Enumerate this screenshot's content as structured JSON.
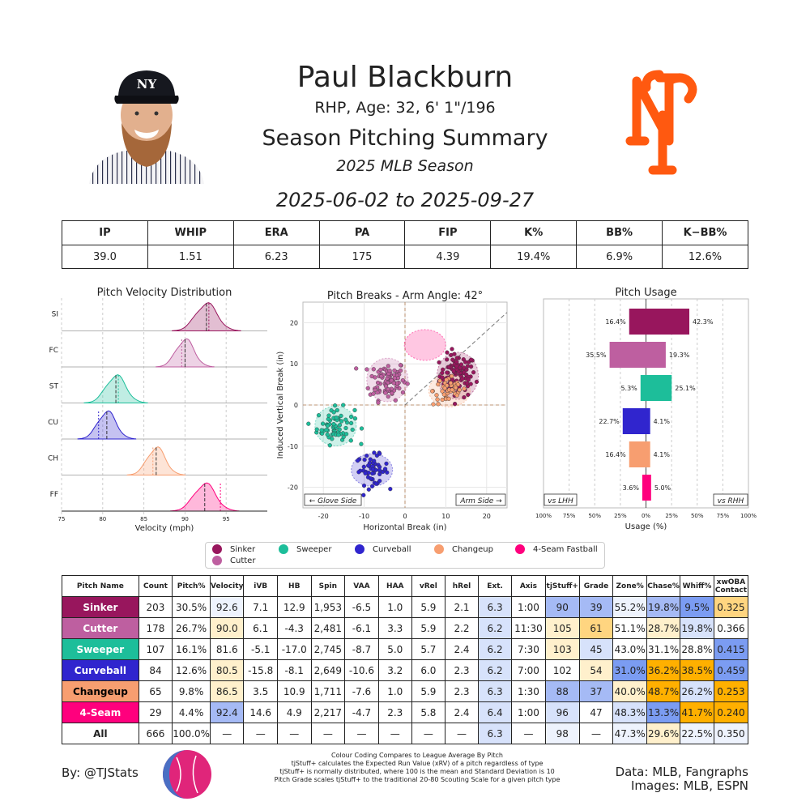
{
  "header": {
    "name": "Paul Blackburn",
    "info": "RHP, Age: 32, 6' 1\"/196",
    "summary_title": "Season Pitching Summary",
    "season": "2025 MLB Season",
    "date_range": "2025-06-02 to 2025-09-27"
  },
  "summary_stats": {
    "headers": [
      "IP",
      "WHIP",
      "ERA",
      "PA",
      "FIP",
      "K%",
      "BB%",
      "K−BB%"
    ],
    "values": [
      "39.0",
      "1.51",
      "6.23",
      "175",
      "4.39",
      "19.4%",
      "6.9%",
      "12.6%"
    ]
  },
  "colors": {
    "Sinker": "#98165d",
    "Cutter": "#be5fa0",
    "Sweeper": "#1dbe9a",
    "Curveball": "#3025ce",
    "Changeup": "#f79e70",
    "4-Seam Fastball": "#ff007d",
    "blue_strong": "#7b9cf2",
    "blue_mid": "#a5baf5",
    "blue_light": "#d7e2fb",
    "blue_faint": "#eef3fd",
    "orange_strong": "#ffb000",
    "orange_mid": "#ffd580",
    "orange_light": "#fff0cc"
  },
  "chart_data": [
    {
      "type": "area",
      "title": "Pitch Velocity Distribution",
      "xlabel": "Velocity (mph)",
      "xlim": [
        75,
        100
      ],
      "xticks": [
        "75",
        "80",
        "85",
        "90",
        "95"
      ],
      "series": [
        {
          "name": "SI",
          "pitch": "Sinker",
          "mean": 92.6,
          "league": 92.9,
          "sd": 1.3
        },
        {
          "name": "FC",
          "pitch": "Cutter",
          "mean": 90.0,
          "league": 89.6,
          "sd": 1.1
        },
        {
          "name": "ST",
          "pitch": "Sweeper",
          "mean": 81.6,
          "league": 81.9,
          "sd": 1.2
        },
        {
          "name": "CU",
          "pitch": "Curveball",
          "mean": 80.5,
          "league": 79.5,
          "sd": 1.1
        },
        {
          "name": "CH",
          "pitch": "Changeup",
          "mean": 86.5,
          "league": 86.1,
          "sd": 1.1
        },
        {
          "name": "FF",
          "pitch": "4-Seam Fastball",
          "mean": 92.4,
          "league": 94.3,
          "sd": 1.3
        }
      ]
    },
    {
      "type": "scatter",
      "title": "Pitch Breaks - Arm Angle: 42°",
      "xlabel": "Horizontal Break (in)",
      "ylabel": "Induced Vertical Break (in)",
      "xlim": [
        -25,
        25
      ],
      "ylim": [
        -25,
        25
      ],
      "xticks": [
        -20,
        -10,
        0,
        10,
        20
      ],
      "yticks": [
        -20,
        -10,
        0,
        10,
        20
      ],
      "glove_label": "← Glove Side",
      "arm_label": "Arm Side →",
      "series": [
        {
          "name": "Sinker",
          "x": 12.9,
          "y": 7.1,
          "sx": 2.2,
          "sy": 2.6,
          "n": 100
        },
        {
          "name": "Cutter",
          "x": -4.3,
          "y": 6.1,
          "sx": 2.2,
          "sy": 2.4,
          "n": 90
        },
        {
          "name": "Sweeper",
          "x": -17.0,
          "y": -5.1,
          "sx": 2.3,
          "sy": 2.2,
          "n": 70
        },
        {
          "name": "Curveball",
          "x": -8.1,
          "y": -15.8,
          "sx": 2.0,
          "sy": 1.8,
          "n": 55
        },
        {
          "name": "Changeup",
          "x": 10.9,
          "y": 3.5,
          "sx": 2.0,
          "sy": 1.8,
          "n": 45
        },
        {
          "name": "4-Seam Fastball",
          "x": 4.9,
          "y": 14.6,
          "sx": 0,
          "sy": 0,
          "n": 0
        }
      ]
    },
    {
      "type": "bar",
      "title": "Pitch Usage",
      "xlabel": "Usage (%)",
      "xticks": [
        "100%",
        "75%",
        "50%",
        "25%",
        "0%",
        "25%",
        "50%",
        "75%",
        "100%"
      ],
      "lhh_label": "vs LHH",
      "rhh_label": "vs RHH",
      "categories": [
        "Sinker",
        "Cutter",
        "Sweeper",
        "Curveball",
        "Changeup",
        "4-Seam Fastball"
      ],
      "series": [
        {
          "name": "vs LHH",
          "values": [
            16.4,
            35.5,
            5.3,
            22.7,
            16.4,
            3.6
          ],
          "labels": [
            "16.4%",
            "35.5%",
            "5.3%",
            "22.7%",
            "16.4%",
            "3.6%"
          ]
        },
        {
          "name": "vs RHH",
          "values": [
            42.3,
            19.3,
            25.1,
            4.1,
            4.1,
            5.0
          ],
          "labels": [
            "42.3%",
            "19.3%",
            "25.1%",
            "4.1%",
            "4.1%",
            "5.0%"
          ]
        }
      ]
    }
  ],
  "legend": [
    "Sinker",
    "Cutter",
    "Sweeper",
    "Curveball",
    "Changeup",
    "4-Seam Fastball"
  ],
  "pitch_table": {
    "headers": [
      "Pitch Name",
      "Count",
      "Pitch%",
      "Velocity",
      "iVB",
      "HB",
      "Spin",
      "VAA",
      "HAA",
      "vRel",
      "hRel",
      "Ext.",
      "Axis",
      "tjStuff+",
      "Grade",
      "Zone%",
      "Chase%",
      "Whiff%",
      "xwOBA Contact"
    ],
    "rows": [
      {
        "pitch": "Sinker",
        "cells": [
          "Sinker",
          "203",
          "30.5%",
          "92.6",
          "7.1",
          "12.9",
          "1,953",
          "-6.5",
          "1.0",
          "5.9",
          "2.1",
          "6.3",
          "1:00",
          "90",
          "39",
          "55.2%",
          "19.8%",
          "9.5%",
          "0.325"
        ],
        "shades": [
          "",
          "",
          "",
          "blue_faint",
          "",
          "",
          "",
          "",
          "",
          "",
          "",
          "blue_light",
          "",
          "blue_mid",
          "blue_mid",
          "blue_faint",
          "blue_mid",
          "blue_strong",
          "orange_mid"
        ]
      },
      {
        "pitch": "Cutter",
        "cells": [
          "Cutter",
          "178",
          "26.7%",
          "90.0",
          "6.1",
          "-4.3",
          "2,481",
          "-6.1",
          "3.3",
          "5.9",
          "2.2",
          "6.2",
          "11:30",
          "105",
          "61",
          "51.1%",
          "28.7%",
          "19.8%",
          "0.366"
        ],
        "shades": [
          "",
          "",
          "",
          "orange_light",
          "",
          "",
          "",
          "",
          "",
          "",
          "",
          "blue_light",
          "",
          "orange_light",
          "orange_mid",
          "",
          "orange_light",
          "blue_light",
          ""
        ]
      },
      {
        "pitch": "Sweeper",
        "cells": [
          "Sweeper",
          "107",
          "16.1%",
          "81.6",
          "-5.1",
          "-17.0",
          "2,745",
          "-8.7",
          "5.0",
          "5.7",
          "2.4",
          "6.2",
          "7:30",
          "103",
          "45",
          "43.0%",
          "31.1%",
          "28.8%",
          "0.415"
        ],
        "shades": [
          "",
          "",
          "",
          "",
          "",
          "",
          "",
          "",
          "",
          "",
          "",
          "blue_light",
          "",
          "orange_light",
          "blue_light",
          "",
          "",
          "",
          "blue_strong"
        ]
      },
      {
        "pitch": "Curveball",
        "cells": [
          "Curveball",
          "84",
          "12.6%",
          "80.5",
          "-15.8",
          "-8.1",
          "2,649",
          "-10.6",
          "3.2",
          "6.0",
          "2.3",
          "6.2",
          "7:00",
          "102",
          "54",
          "31.0%",
          "36.2%",
          "38.5%",
          "0.459"
        ],
        "shades": [
          "",
          "",
          "",
          "orange_light",
          "",
          "",
          "",
          "",
          "",
          "",
          "",
          "blue_light",
          "",
          "",
          "orange_light",
          "blue_strong",
          "orange_strong",
          "orange_strong",
          "blue_strong"
        ]
      },
      {
        "pitch": "Changeup",
        "cells": [
          "Changeup",
          "65",
          "9.8%",
          "86.5",
          "3.5",
          "10.9",
          "1,711",
          "-7.6",
          "1.0",
          "5.9",
          "2.3",
          "6.3",
          "1:30",
          "88",
          "37",
          "40.0%",
          "48.7%",
          "26.2%",
          "0.253"
        ],
        "shades": [
          "",
          "",
          "",
          "orange_light",
          "",
          "",
          "",
          "",
          "",
          "",
          "",
          "blue_light",
          "",
          "blue_mid",
          "blue_mid",
          "orange_light",
          "orange_strong",
          "blue_light",
          "orange_strong"
        ]
      },
      {
        "pitch": "4-Seam Fastball",
        "cells": [
          "4-Seam",
          "29",
          "4.4%",
          "92.4",
          "14.6",
          "4.9",
          "2,217",
          "-4.7",
          "2.3",
          "5.8",
          "2.4",
          "6.4",
          "1:00",
          "96",
          "47",
          "48.3%",
          "13.3%",
          "41.7%",
          "0.240"
        ],
        "shades": [
          "",
          "",
          "",
          "blue_mid",
          "",
          "",
          "",
          "",
          "",
          "",
          "",
          "blue_light",
          "",
          "blue_light",
          "",
          "blue_light",
          "blue_strong",
          "orange_strong",
          "orange_strong"
        ]
      },
      {
        "pitch": "All",
        "cells": [
          "All",
          "666",
          "100.0%",
          "—",
          "—",
          "—",
          "—",
          "—",
          "—",
          "—",
          "—",
          "6.3",
          "—",
          "98",
          "—",
          "47.3%",
          "29.6%",
          "22.5%",
          "0.350"
        ],
        "shades": [
          "",
          "",
          "",
          "",
          "",
          "",
          "",
          "",
          "",
          "",
          "",
          "blue_light",
          "",
          "blue_faint",
          "",
          "blue_faint",
          "orange_light",
          "blue_faint",
          "blue_faint"
        ]
      }
    ]
  },
  "footer": {
    "by": "By: @TJStats",
    "notes": [
      "Colour Coding Compares to League Average By Pitch",
      "tjStuff+ calculates the Expected Run Value (xRV) of a pitch regardless of type",
      "tjStuff+ is normally distributed, where 100 is the mean and Standard Deviation is 10",
      "Pitch Grade scales tjStuff+ to the traditional 20-80 Scouting Scale for a given pitch type"
    ],
    "data_credit": "Data: MLB, Fangraphs",
    "image_credit": "Images: MLB, ESPN"
  }
}
